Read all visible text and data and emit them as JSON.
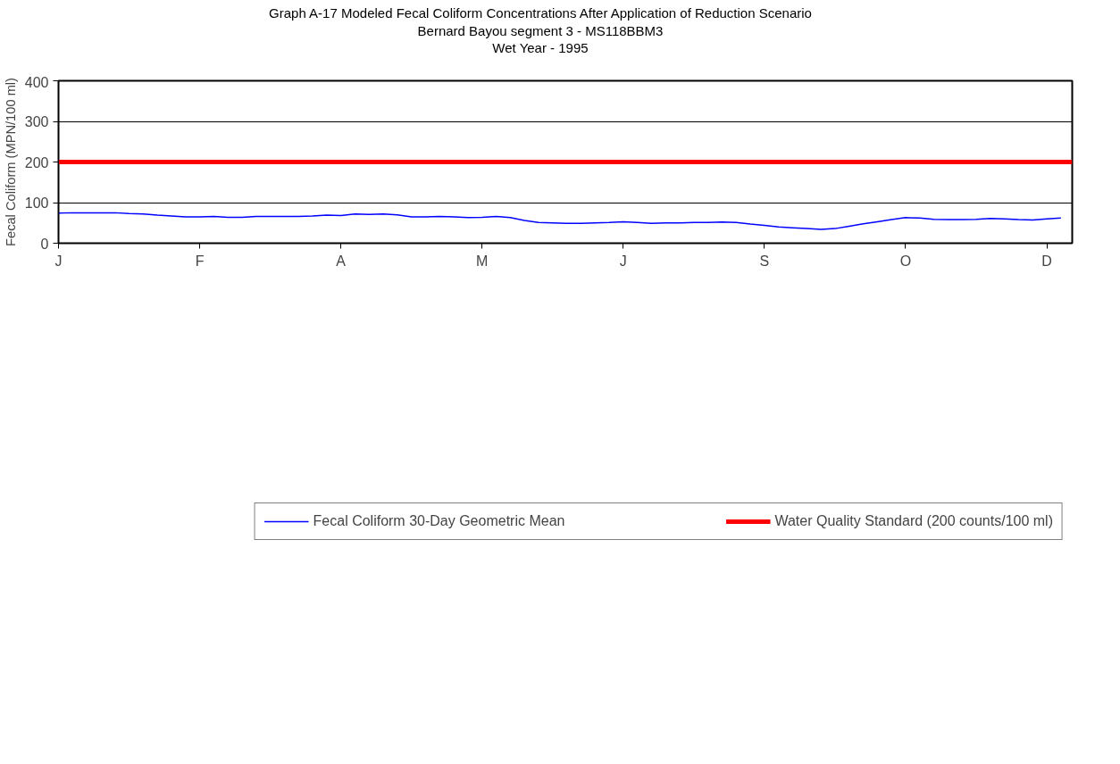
{
  "chart_data": {
    "type": "line",
    "title": "Graph A-17  Modeled Fecal Coliform Concentrations After Application of Reduction Scenario",
    "subtitle": "Bernard Bayou segment 3 - MS118BBM3\nWet Year - 1995",
    "ylabel": "Fecal Coliform (MPN/100 ml)",
    "categories": [
      "J",
      null,
      null,
      null,
      null,
      null,
      null,
      null,
      null,
      null,
      "F",
      null,
      null,
      null,
      null,
      null,
      null,
      null,
      null,
      null,
      "A",
      null,
      null,
      null,
      null,
      null,
      null,
      null,
      null,
      null,
      "M",
      null,
      null,
      null,
      null,
      null,
      null,
      null,
      null,
      null,
      "J",
      null,
      null,
      null,
      null,
      null,
      null,
      null,
      null,
      null,
      "S",
      null,
      null,
      null,
      null,
      null,
      null,
      null,
      null,
      null,
      "O",
      null,
      null,
      null,
      null,
      null,
      null,
      null,
      null,
      null,
      "D",
      null
    ],
    "ylim": [
      0,
      400
    ],
    "yticks": [
      0,
      100,
      200,
      300,
      400
    ],
    "grid": "y",
    "legend": "bottom",
    "marker": "none",
    "line_style": "solid",
    "series": [
      {
        "name": "Fecal Coliform 30-Day Geometric Mean",
        "color": "#0000ff",
        "values": [
          74,
          75,
          75,
          75,
          75,
          73,
          72,
          69,
          67,
          65,
          65,
          66,
          64,
          64,
          66,
          66,
          66,
          66,
          67,
          69,
          68,
          72,
          71,
          72,
          70,
          65,
          65,
          66,
          65,
          63,
          64,
          66,
          63,
          56,
          51,
          50,
          49,
          49,
          50,
          51,
          53,
          51,
          49,
          50,
          50,
          51,
          51,
          52,
          51,
          47,
          44,
          40,
          38,
          36,
          34,
          36,
          42,
          48,
          53,
          58,
          63,
          62,
          59,
          58,
          58,
          59,
          61,
          60,
          58,
          57,
          60,
          62
        ]
      }
    ],
    "ref_lines": [
      {
        "axis": "y",
        "value": 200,
        "label": "Water Quality Standard (200 counts/100 ml)",
        "color": "#ff0000"
      }
    ]
  }
}
